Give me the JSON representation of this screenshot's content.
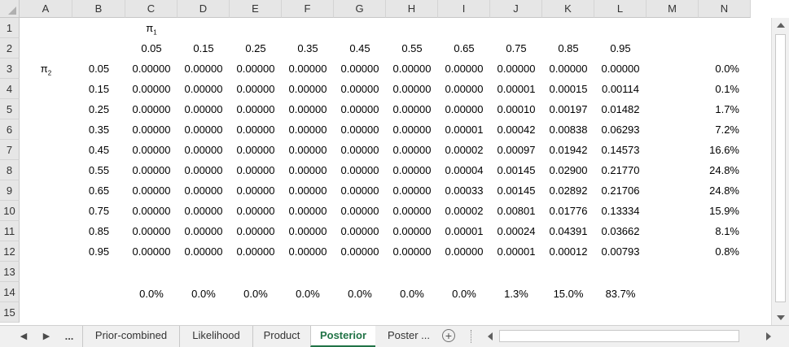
{
  "columns": [
    "A",
    "B",
    "C",
    "D",
    "E",
    "F",
    "G",
    "H",
    "I",
    "J",
    "K",
    "L",
    "M",
    "N"
  ],
  "rows": [
    "1",
    "2",
    "3",
    "4",
    "5",
    "6",
    "7",
    "8",
    "9",
    "10",
    "11",
    "12",
    "13",
    "14",
    "15"
  ],
  "pi1_label": "π",
  "pi1_sub": "1",
  "pi2_label": "π",
  "pi2_sub": "2",
  "pi1_values": [
    "0.05",
    "0.15",
    "0.25",
    "0.35",
    "0.45",
    "0.55",
    "0.65",
    "0.75",
    "0.85",
    "0.95"
  ],
  "pi2_values": [
    "0.05",
    "0.15",
    "0.25",
    "0.35",
    "0.45",
    "0.55",
    "0.65",
    "0.75",
    "0.85",
    "0.95"
  ],
  "matrix": [
    [
      "0.00000",
      "0.00000",
      "0.00000",
      "0.00000",
      "0.00000",
      "0.00000",
      "0.00000",
      "0.00000",
      "0.00000",
      "0.00000"
    ],
    [
      "0.00000",
      "0.00000",
      "0.00000",
      "0.00000",
      "0.00000",
      "0.00000",
      "0.00000",
      "0.00001",
      "0.00015",
      "0.00114"
    ],
    [
      "0.00000",
      "0.00000",
      "0.00000",
      "0.00000",
      "0.00000",
      "0.00000",
      "0.00000",
      "0.00010",
      "0.00197",
      "0.01482"
    ],
    [
      "0.00000",
      "0.00000",
      "0.00000",
      "0.00000",
      "0.00000",
      "0.00000",
      "0.00001",
      "0.00042",
      "0.00838",
      "0.06293"
    ],
    [
      "0.00000",
      "0.00000",
      "0.00000",
      "0.00000",
      "0.00000",
      "0.00000",
      "0.00002",
      "0.00097",
      "0.01942",
      "0.14573"
    ],
    [
      "0.00000",
      "0.00000",
      "0.00000",
      "0.00000",
      "0.00000",
      "0.00000",
      "0.00004",
      "0.00145",
      "0.02900",
      "0.21770"
    ],
    [
      "0.00000",
      "0.00000",
      "0.00000",
      "0.00000",
      "0.00000",
      "0.00000",
      "0.00033",
      "0.00145",
      "0.02892",
      "0.21706"
    ],
    [
      "0.00000",
      "0.00000",
      "0.00000",
      "0.00000",
      "0.00000",
      "0.00000",
      "0.00002",
      "0.00801",
      "0.01776",
      "0.13334"
    ],
    [
      "0.00000",
      "0.00000",
      "0.00000",
      "0.00000",
      "0.00000",
      "0.00000",
      "0.00001",
      "0.00024",
      "0.04391",
      "0.03662"
    ],
    [
      "0.00000",
      "0.00000",
      "0.00000",
      "0.00000",
      "0.00000",
      "0.00000",
      "0.00000",
      "0.00001",
      "0.00012",
      "0.00793"
    ]
  ],
  "row_totals": [
    "0.0%",
    "0.1%",
    "1.7%",
    "7.2%",
    "16.6%",
    "24.8%",
    "24.8%",
    "15.9%",
    "8.1%",
    "0.8%"
  ],
  "col_totals": [
    "0.0%",
    "0.0%",
    "0.0%",
    "0.0%",
    "0.0%",
    "0.0%",
    "0.0%",
    "1.3%",
    "15.0%",
    "83.7%"
  ],
  "tabs": {
    "prev": "◀",
    "next": "▶",
    "more": "...",
    "items": [
      "Prior-combined",
      "Likelihood",
      "Product",
      "Posterior",
      "Poster ..."
    ],
    "active": "Posterior",
    "add": "+"
  }
}
